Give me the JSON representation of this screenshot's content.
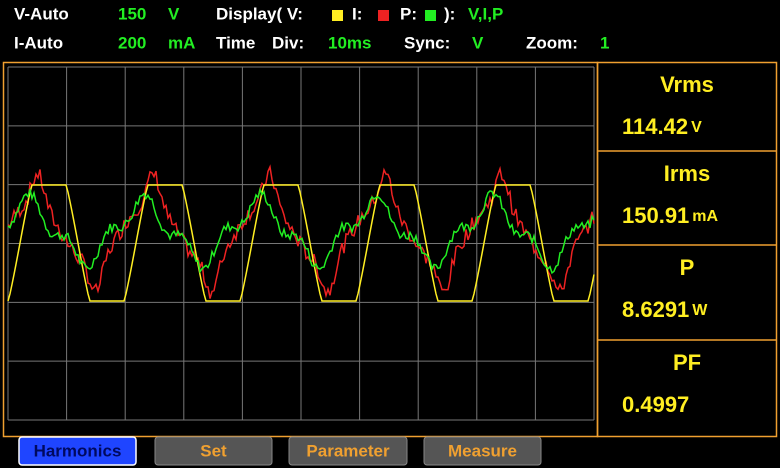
{
  "header": {
    "row1": {
      "range_mode": "V-Auto",
      "range_value": "150",
      "range_unit": "V",
      "display_label": "Display( V:",
      "current_key": "I:",
      "power_key": "P:",
      "display_close": "):",
      "display_value": "V,I,P"
    },
    "row2": {
      "range_mode": "I-Auto",
      "range_value": "200",
      "range_unit": "mA",
      "time_label": "Time",
      "div_label": "Div:",
      "div_value": "10ms",
      "sync_label": "Sync:",
      "sync_value": "V",
      "zoom_label": "Zoom:",
      "zoom_value": "1"
    }
  },
  "readings": [
    {
      "label": "Vrms",
      "value": "114.42",
      "unit": "V"
    },
    {
      "label": "Irms",
      "value": "150.91",
      "unit": "mA"
    },
    {
      "label": "P",
      "value": "8.6291",
      "unit": "W"
    },
    {
      "label": "PF",
      "value": "0.4997"
    }
  ],
  "buttons": [
    "Harmonics",
    "Set",
    "Parameter",
    "Measure"
  ]
}
